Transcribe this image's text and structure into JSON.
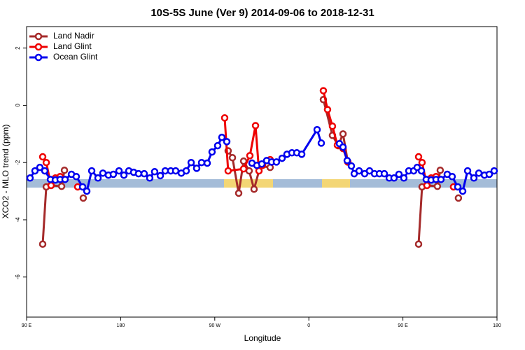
{
  "chart_data": {
    "type": "line",
    "title": "10S-5S June (Ver 9)   2014-09-06 to 2018-12-31",
    "x_label": "Longitude",
    "y_label": "XCO2 - MLO trend (ppm)",
    "xlim": [
      90,
      540
    ],
    "ylim": [
      -7.4,
      2.75
    ],
    "xticks": [
      {
        "value": 90,
        "label": "90 E"
      },
      180,
      {
        "value": 270,
        "label": "90 W"
      },
      {
        "value": 360,
        "label": "0"
      },
      {
        "value": 450,
        "label": "90 E"
      },
      {
        "value": 540,
        "label": "180"
      }
    ],
    "yticks": [
      -6,
      -4,
      -2,
      0,
      2
    ],
    "legend": "top-left",
    "series": [
      {
        "name": "Land Nadir",
        "color": "#a52a2a",
        "x": [
          105.4,
          108.8,
          113.4,
          123.5,
          126.2,
          null,
          144.2,
          null,
          282.8,
          286.9,
          292.9,
          297.6,
          302.9,
          307.6,
          313.6,
          323.0,
          null,
          373.9,
          382.6,
          388.0,
          392.7,
          397.3,
          null,
          465.0,
          468.3,
          473.0,
          483.0,
          485.7,
          null,
          503.1
        ],
        "values": [
          -4.85,
          -2.85,
          -2.8,
          -2.83,
          -2.27,
          null,
          -3.24,
          null,
          -1.59,
          -1.83,
          -3.07,
          -1.95,
          -2.29,
          -2.93,
          -2.12,
          -2.17,
          null,
          0.2,
          -1.05,
          -1.41,
          -1.0,
          -1.98,
          null,
          -4.85,
          -2.85,
          -2.8,
          -2.83,
          -2.27,
          null,
          -3.24
        ]
      },
      {
        "name": "Land Glint",
        "color": "#ee0000",
        "x": [
          105.4,
          108.8,
          113.4,
          117.5,
          122.1,
          null,
          138.9,
          null,
          279.5,
          282.8,
          297.6,
          303.6,
          309.0,
          312.3,
          315.7,
          323.0,
          null,
          373.9,
          377.9,
          382.6,
          387.3,
          392.7,
          397.3,
          null,
          465.0,
          468.3,
          473.0,
          477.0,
          481.7,
          null,
          498.4
        ],
        "values": [
          -1.8,
          -2.0,
          -2.8,
          -2.54,
          -2.49,
          null,
          -2.85,
          null,
          -0.44,
          -2.29,
          -2.22,
          -1.76,
          -0.71,
          -2.29,
          -2.1,
          -1.9,
          null,
          0.51,
          -0.15,
          -0.73,
          -1.39,
          -1.51,
          -1.98,
          null,
          -1.8,
          -2.0,
          -2.8,
          -2.54,
          -2.49,
          null,
          -2.85
        ]
      },
      {
        "name": "Ocean Glint",
        "color": "#0000ee",
        "x": [
          93.3,
          98.0,
          102.7,
          107.4,
          112.8,
          117.5,
          122.1,
          126.8,
          132.9,
          137.5,
          143.6,
          147.6,
          152.3,
          158.3,
          163.0,
          168.3,
          173.0,
          178.4,
          183.1,
          187.8,
          192.4,
          197.1,
          202.5,
          207.8,
          212.5,
          217.9,
          222.6,
          227.9,
          232.6,
          238.0,
          242.7,
          247.4,
          252.7,
          257.4,
          262.8,
          267.4,
          272.8,
          276.8,
          281.5,
          null,
          305.6,
          310.3,
          315.0,
          319.7,
          324.4,
          329.0,
          334.4,
          339.1,
          343.8,
          348.5,
          353.2,
          367.9,
          371.9,
          null,
          389.3,
          392.7,
          396.7,
          400.7,
          403.4,
          408.1,
          413.4,
          418.1,
          422.8,
          427.5,
          432.2,
          436.9,
          441.5,
          446.2,
          450.9,
          455.6,
          460.3,
          463.6,
          467.7,
          472.3,
          477.0,
          481.7,
          486.4,
          492.4,
          497.1,
          502.5,
          507.2,
          511.9,
          517.9,
          522.6,
          528.0,
          532.6,
          537.3
        ],
        "values": [
          -2.54,
          -2.29,
          -2.17,
          -2.29,
          -2.59,
          -2.61,
          -2.59,
          -2.59,
          -2.41,
          -2.49,
          -2.85,
          -3.0,
          -2.29,
          -2.54,
          -2.37,
          -2.44,
          -2.41,
          -2.29,
          -2.44,
          -2.29,
          -2.34,
          -2.39,
          -2.39,
          -2.54,
          -2.32,
          -2.46,
          -2.29,
          -2.29,
          -2.29,
          -2.37,
          -2.29,
          -2.0,
          -2.2,
          -2.0,
          -2.02,
          -1.63,
          -1.41,
          -1.12,
          -1.27,
          null,
          -2.02,
          -2.1,
          -2.05,
          -1.93,
          -1.98,
          -1.98,
          -1.85,
          -1.71,
          -1.66,
          -1.66,
          -1.71,
          -0.85,
          -1.32,
          null,
          -1.34,
          -1.46,
          -1.93,
          -2.12,
          -2.39,
          -2.29,
          -2.39,
          -2.29,
          -2.39,
          -2.39,
          -2.39,
          -2.54,
          -2.54,
          -2.41,
          -2.54,
          -2.29,
          -2.29,
          -2.17,
          -2.29,
          -2.59,
          -2.61,
          -2.59,
          -2.59,
          -2.41,
          -2.49,
          -2.85,
          -3.0,
          -2.29,
          -2.54,
          -2.37,
          -2.44,
          -2.41,
          -2.29
        ]
      }
    ]
  }
}
